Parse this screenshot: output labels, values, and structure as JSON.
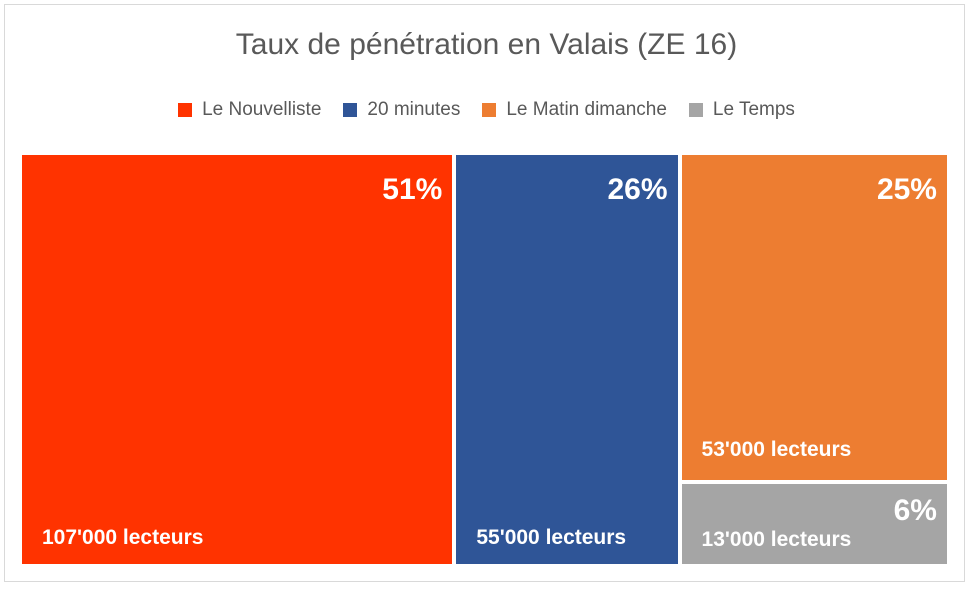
{
  "chart_data": {
    "type": "treemap",
    "title": "Taux de pénétration en Valais (ZE 16)",
    "series": [
      {
        "name": "Le Nouvelliste",
        "percent_label": "51%",
        "readers_label": "107'000 lecteurs",
        "value": 107000,
        "color": "#FF3300"
      },
      {
        "name": "20 minutes",
        "percent_label": "26%",
        "readers_label": "55'000 lecteurs",
        "value": 55000,
        "color": "#2F5597"
      },
      {
        "name": "Le Matin dimanche",
        "percent_label": "25%",
        "readers_label": "53'000 lecteurs",
        "value": 53000,
        "color": "#ED7D31"
      },
      {
        "name": "Le Temps",
        "percent_label": "6%",
        "readers_label": "13'000 lecteurs",
        "value": 13000,
        "color": "#A5A5A5"
      }
    ],
    "legend_position": "top"
  }
}
